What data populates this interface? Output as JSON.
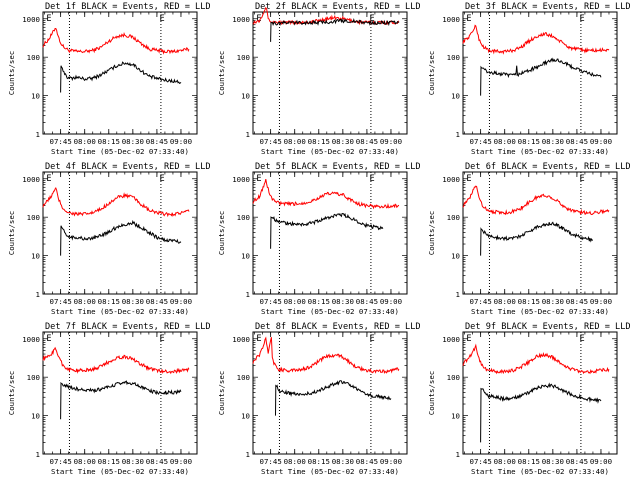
{
  "figure": {
    "xlabel": "Start Time (05-Dec-02 07:33:40)",
    "ylabel": "Counts/sec"
  },
  "axes_common": {
    "x_tick_labels": [
      "07:45",
      "08:00",
      "08:15",
      "08:30",
      "08:45",
      "09:00"
    ],
    "x_tick_minutes": [
      45,
      60,
      75,
      90,
      105,
      120
    ],
    "x_minor_step_minutes": 5,
    "xlim_minutes": [
      34,
      130
    ],
    "y_tick_labels": [
      "1",
      "10",
      "100",
      "1000"
    ],
    "y_tick_values": [
      1,
      10,
      100,
      1000
    ],
    "ylim": [
      1,
      1500
    ],
    "yscale": "log",
    "vlines_minutes": [
      50.5,
      107.5
    ],
    "markers": [
      {
        "label": "E",
        "minute": 38
      },
      {
        "label": "E",
        "minute": 108.5
      }
    ],
    "colors": {
      "events": "#000000",
      "lld": "#ff0000"
    }
  },
  "chart_data": [
    {
      "type": "line",
      "title": "Det 1f BLACK = Events, RED = LLD",
      "series": [
        {
          "name": "LLD",
          "color": "#ff0000",
          "x": [
            34,
            38,
            42,
            44,
            46,
            48,
            50,
            55,
            60,
            65,
            70,
            75,
            80,
            85,
            90,
            95,
            100,
            105,
            110,
            115,
            120,
            125
          ],
          "y": [
            200,
            310,
            600,
            300,
            200,
            170,
            150,
            140,
            140,
            150,
            180,
            260,
            350,
            380,
            330,
            230,
            165,
            150,
            140,
            140,
            150,
            160
          ]
        },
        {
          "name": "Events",
          "color": "#000000",
          "x": [
            45,
            45.2,
            46,
            48,
            50,
            55,
            60,
            65,
            70,
            75,
            80,
            85,
            90,
            95,
            100,
            105,
            110,
            115,
            120
          ],
          "y": [
            12,
            60,
            50,
            35,
            28,
            30,
            27,
            28,
            35,
            45,
            60,
            70,
            65,
            45,
            32,
            28,
            25,
            24,
            22
          ]
        }
      ]
    },
    {
      "type": "line",
      "title": "Det 2f BLACK = Events, RED = LLD",
      "series": [
        {
          "name": "LLD",
          "color": "#ff0000",
          "x": [
            34,
            38,
            42,
            44,
            46,
            48,
            50,
            55,
            60,
            65,
            70,
            75,
            80,
            85,
            90,
            95,
            100,
            105,
            110,
            115,
            120,
            125
          ],
          "y": [
            800,
            900,
            2000,
            900,
            830,
            820,
            800,
            800,
            800,
            810,
            820,
            900,
            1000,
            1050,
            1000,
            900,
            820,
            800,
            800,
            800,
            800,
            810
          ]
        },
        {
          "name": "Events",
          "color": "#000000",
          "x": [
            45,
            45.2,
            46,
            48,
            50,
            55,
            60,
            65,
            70,
            75,
            80,
            85,
            90,
            95,
            100,
            105,
            110,
            115,
            120,
            125
          ],
          "y": [
            250,
            800,
            780,
            760,
            770,
            790,
            790,
            790,
            790,
            800,
            820,
            860,
            880,
            870,
            830,
            790,
            780,
            790,
            790,
            800
          ]
        }
      ]
    },
    {
      "type": "line",
      "title": "Det 3f BLACK = Events, RED = LLD",
      "series": [
        {
          "name": "LLD",
          "color": "#ff0000",
          "x": [
            34,
            38,
            42,
            44,
            46,
            48,
            50,
            55,
            60,
            65,
            70,
            75,
            80,
            85,
            90,
            95,
            100,
            105,
            110,
            115,
            120,
            125
          ],
          "y": [
            250,
            350,
            650,
            300,
            200,
            170,
            150,
            140,
            140,
            150,
            180,
            260,
            350,
            400,
            350,
            250,
            180,
            160,
            150,
            150,
            150,
            160
          ]
        },
        {
          "name": "Events",
          "color": "#000000",
          "x": [
            45,
            45.2,
            46,
            48,
            50,
            55,
            60,
            65,
            67,
            67.5,
            68,
            70,
            75,
            80,
            85,
            90,
            95,
            100,
            105,
            110,
            115,
            120
          ],
          "y": [
            10,
            55,
            50,
            45,
            40,
            38,
            35,
            33,
            35,
            60,
            35,
            38,
            45,
            55,
            70,
            85,
            80,
            60,
            50,
            40,
            35,
            30
          ]
        }
      ]
    },
    {
      "type": "line",
      "title": "Det 4f BLACK = Events, RED = LLD",
      "series": [
        {
          "name": "LLD",
          "color": "#ff0000",
          "x": [
            34,
            38,
            42,
            44,
            46,
            48,
            50,
            55,
            60,
            65,
            70,
            75,
            80,
            85,
            90,
            95,
            100,
            105,
            110,
            115,
            120,
            125
          ],
          "y": [
            200,
            300,
            550,
            280,
            180,
            150,
            130,
            120,
            120,
            130,
            160,
            230,
            320,
            370,
            330,
            220,
            150,
            130,
            120,
            120,
            130,
            140
          ]
        },
        {
          "name": "Events",
          "color": "#000000",
          "x": [
            45,
            45.2,
            46,
            48,
            50,
            55,
            60,
            65,
            70,
            75,
            80,
            85,
            90,
            95,
            100,
            105,
            110,
            115,
            120
          ],
          "y": [
            10,
            60,
            50,
            38,
            30,
            30,
            27,
            28,
            33,
            42,
            55,
            65,
            70,
            55,
            40,
            30,
            25,
            25,
            22
          ]
        }
      ]
    },
    {
      "type": "line",
      "title": "Det 5f BLACK = Events, RED = LLD",
      "series": [
        {
          "name": "LLD",
          "color": "#ff0000",
          "x": [
            34,
            38,
            42,
            44,
            46,
            48,
            50,
            55,
            60,
            65,
            70,
            75,
            80,
            85,
            90,
            95,
            100,
            105,
            110,
            115,
            120,
            125
          ],
          "y": [
            250,
            350,
            900,
            450,
            300,
            260,
            230,
            220,
            220,
            230,
            260,
            320,
            400,
            420,
            380,
            280,
            220,
            200,
            190,
            190,
            190,
            200
          ]
        },
        {
          "name": "Events",
          "color": "#000000",
          "x": [
            45,
            45.2,
            46,
            48,
            50,
            55,
            60,
            65,
            70,
            75,
            80,
            85,
            90,
            95,
            100,
            105,
            110,
            115
          ],
          "y": [
            15,
            100,
            95,
            85,
            75,
            70,
            65,
            65,
            70,
            80,
            95,
            110,
            115,
            95,
            75,
            60,
            55,
            50
          ]
        }
      ]
    },
    {
      "type": "line",
      "title": "Det 6f BLACK = Events, RED = LLD",
      "series": [
        {
          "name": "LLD",
          "color": "#ff0000",
          "x": [
            34,
            38,
            42,
            44,
            46,
            48,
            50,
            55,
            60,
            65,
            70,
            75,
            80,
            85,
            90,
            95,
            100,
            105,
            110,
            115,
            120,
            125
          ],
          "y": [
            200,
            300,
            700,
            330,
            210,
            170,
            150,
            135,
            130,
            140,
            170,
            240,
            330,
            370,
            320,
            220,
            160,
            140,
            130,
            130,
            140,
            150
          ]
        },
        {
          "name": "Events",
          "color": "#000000",
          "x": [
            45,
            45.2,
            46,
            48,
            50,
            55,
            60,
            65,
            70,
            75,
            80,
            85,
            90,
            95,
            100,
            105,
            110,
            115
          ],
          "y": [
            10,
            50,
            45,
            38,
            32,
            30,
            28,
            28,
            33,
            42,
            55,
            65,
            70,
            55,
            40,
            32,
            28,
            25
          ]
        }
      ]
    },
    {
      "type": "line",
      "title": "Det 7f BLACK = Events, RED = LLD",
      "series": [
        {
          "name": "LLD",
          "color": "#ff0000",
          "x": [
            34,
            38,
            42,
            44,
            46,
            48,
            50,
            55,
            60,
            65,
            70,
            75,
            80,
            85,
            90,
            95,
            100,
            105,
            110,
            115,
            120,
            125
          ],
          "y": [
            300,
            360,
            550,
            330,
            220,
            180,
            160,
            150,
            150,
            160,
            190,
            250,
            320,
            340,
            300,
            220,
            170,
            150,
            140,
            140,
            150,
            160
          ]
        },
        {
          "name": "Events",
          "color": "#000000",
          "x": [
            45,
            45.2,
            46,
            48,
            50,
            55,
            60,
            65,
            70,
            75,
            80,
            85,
            90,
            95,
            100,
            105,
            110,
            115,
            120
          ],
          "y": [
            8,
            70,
            65,
            60,
            55,
            50,
            45,
            45,
            48,
            55,
            65,
            75,
            70,
            55,
            45,
            40,
            40,
            40,
            42
          ]
        }
      ]
    },
    {
      "type": "line",
      "title": "Det 8f BLACK = Events, RED = LLD",
      "series": [
        {
          "name": "LLD",
          "color": "#ff0000",
          "x": [
            34,
            38,
            40,
            42,
            43.5,
            45,
            45.5,
            46,
            48,
            50,
            55,
            60,
            65,
            70,
            75,
            80,
            85,
            90,
            95,
            100,
            105,
            110,
            115,
            120,
            125
          ],
          "y": [
            250,
            380,
            600,
            1000,
            400,
            900,
            1100,
            300,
            190,
            160,
            150,
            150,
            160,
            190,
            260,
            350,
            380,
            330,
            230,
            170,
            150,
            140,
            140,
            150,
            160
          ]
        },
        {
          "name": "Events",
          "color": "#000000",
          "x": [
            48,
            48.2,
            49,
            50,
            55,
            60,
            65,
            70,
            75,
            80,
            85,
            90,
            95,
            100,
            105,
            110,
            115,
            120
          ],
          "y": [
            10,
            60,
            55,
            45,
            40,
            36,
            35,
            38,
            45,
            55,
            70,
            75,
            60,
            45,
            35,
            32,
            30,
            28
          ]
        }
      ]
    },
    {
      "type": "line",
      "title": "Det 9f BLACK = Events, RED = LLD",
      "series": [
        {
          "name": "LLD",
          "color": "#ff0000",
          "x": [
            34,
            38,
            42,
            44,
            46,
            48,
            50,
            55,
            60,
            65,
            70,
            75,
            80,
            85,
            90,
            95,
            100,
            105,
            110,
            115,
            120,
            125
          ],
          "y": [
            220,
            330,
            650,
            300,
            200,
            170,
            150,
            140,
            140,
            150,
            180,
            250,
            340,
            380,
            330,
            230,
            170,
            150,
            140,
            140,
            150,
            160
          ]
        },
        {
          "name": "Events",
          "color": "#000000",
          "x": [
            45,
            45.2,
            46,
            48,
            50,
            55,
            60,
            65,
            70,
            75,
            80,
            85,
            90,
            95,
            100,
            105,
            110,
            115,
            120
          ],
          "y": [
            2,
            50,
            48,
            40,
            33,
            30,
            27,
            28,
            32,
            40,
            52,
            60,
            60,
            48,
            38,
            32,
            28,
            26,
            24
          ]
        }
      ]
    }
  ]
}
